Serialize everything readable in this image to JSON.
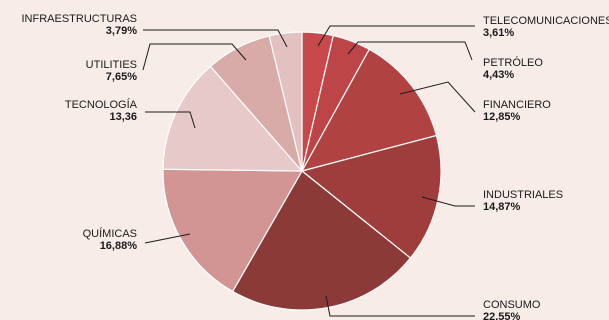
{
  "chart_data": {
    "type": "pie",
    "slices": [
      {
        "label": "TELECOMUNICACIONES",
        "value": 3.61,
        "value_label": "3,61%",
        "color": "#c8494b"
      },
      {
        "label": "PETRÓLEO",
        "value": 4.43,
        "value_label": "4,43%",
        "color": "#bd4447"
      },
      {
        "label": "FINANCIERO",
        "value": 12.85,
        "value_label": "12,85%",
        "color": "#b04342"
      },
      {
        "label": "INDUSTRIALES",
        "value": 14.87,
        "value_label": "14,87%",
        "color": "#9e3d3c"
      },
      {
        "label": "CONSUMO",
        "value": 22.55,
        "value_label": "22,55%",
        "color": "#8c3a37"
      },
      {
        "label": "QUÍMICAS",
        "value": 16.88,
        "value_label": "16,88%",
        "color": "#d29594"
      },
      {
        "label": "TECNOLOGÍA",
        "value": 13.36,
        "value_label": "13,36",
        "color": "#e8c9ca"
      },
      {
        "label": "UTILITIES",
        "value": 7.65,
        "value_label": "7,65%",
        "color": "#d8aaa8"
      },
      {
        "label": "INFRAESTRUCTURAS",
        "value": 3.79,
        "value_label": "3,79%",
        "color": "#e3c1c1"
      }
    ]
  }
}
